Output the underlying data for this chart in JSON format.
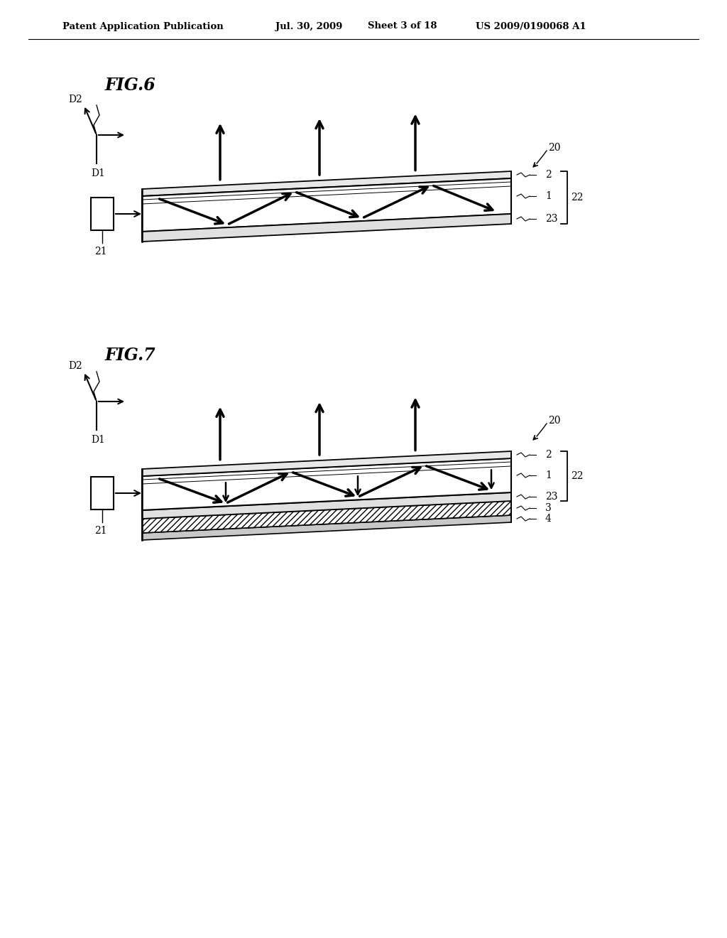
{
  "bg_color": "#ffffff",
  "header_text": "Patent Application Publication",
  "header_date": "Jul. 30, 2009",
  "header_sheet": "Sheet 3 of 18",
  "header_patent": "US 2009/0190068 A1",
  "fig6_title": "FIG.6",
  "fig7_title": "FIG.7",
  "text_color": "#000000",
  "line_color": "#000000"
}
